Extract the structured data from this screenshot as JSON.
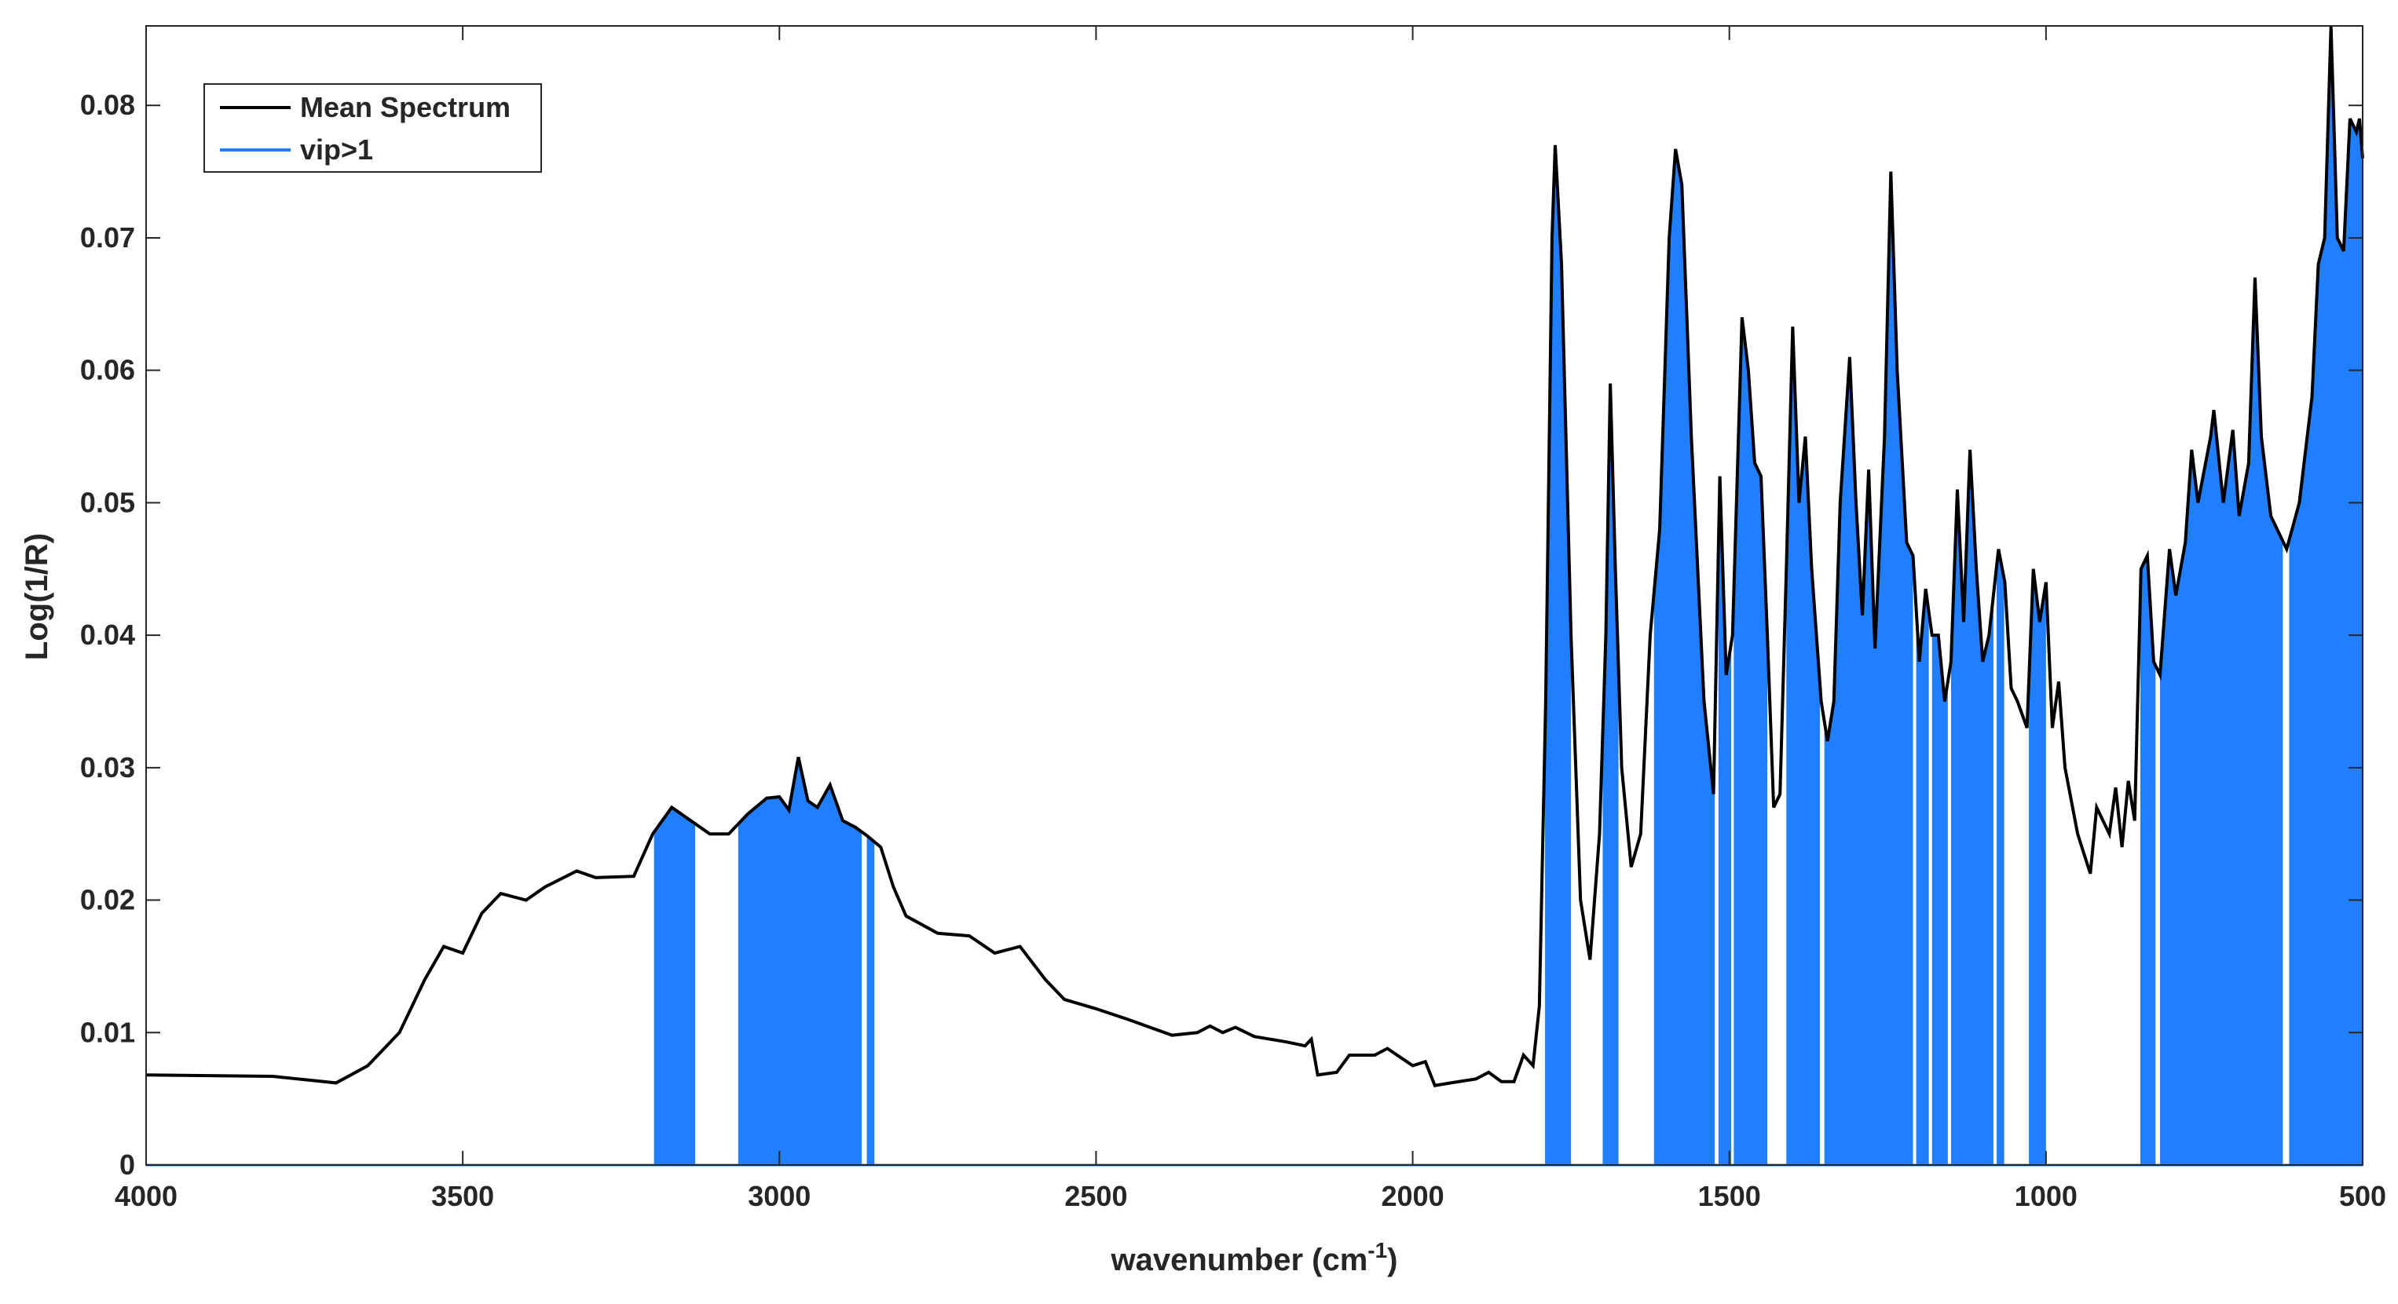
{
  "chart_data": {
    "type": "line",
    "ylabel": "Log(1/R)",
    "xlabel": [
      "wavenumber (cm",
      "-1",
      ")"
    ],
    "xlim": [
      4000,
      500
    ],
    "ylim": [
      0,
      0.086
    ],
    "xticks": [
      4000,
      3500,
      3000,
      2500,
      2000,
      1500,
      1000,
      500
    ],
    "yticks": [
      0,
      0.01,
      0.02,
      0.03,
      0.04,
      0.05,
      0.06,
      0.07,
      0.08
    ],
    "legend": "top-left",
    "series": [
      {
        "name": "Mean Spectrum",
        "color": "#000000",
        "x": [
          4000,
          3800,
          3700,
          3650,
          3600,
          3560,
          3530,
          3500,
          3470,
          3440,
          3400,
          3370,
          3320,
          3290,
          3230,
          3200,
          3170,
          3140,
          3110,
          3080,
          3050,
          3020,
          3000,
          2985,
          2970,
          2955,
          2940,
          2920,
          2900,
          2880,
          2860,
          2840,
          2820,
          2800,
          2750,
          2700,
          2660,
          2620,
          2580,
          2550,
          2500,
          2450,
          2380,
          2340,
          2320,
          2300,
          2280,
          2250,
          2200,
          2170,
          2160,
          2150,
          2120,
          2100,
          2060,
          2040,
          2000,
          1980,
          1965,
          1940,
          1900,
          1880,
          1860,
          1840,
          1825,
          1810,
          1800,
          1790,
          1780,
          1775,
          1765,
          1750,
          1735,
          1720,
          1705,
          1695,
          1688,
          1680,
          1670,
          1655,
          1640,
          1625,
          1610,
          1595,
          1585,
          1575,
          1560,
          1540,
          1525,
          1515,
          1505,
          1495,
          1480,
          1470,
          1460,
          1450,
          1440,
          1430,
          1420,
          1410,
          1400,
          1390,
          1380,
          1370,
          1355,
          1345,
          1335,
          1325,
          1310,
          1300,
          1290,
          1280,
          1270,
          1255,
          1245,
          1235,
          1220,
          1210,
          1200,
          1190,
          1180,
          1170,
          1160,
          1150,
          1140,
          1130,
          1120,
          1110,
          1100,
          1090,
          1075,
          1065,
          1055,
          1045,
          1030,
          1020,
          1010,
          1000,
          990,
          980,
          970,
          950,
          930,
          920,
          900,
          890,
          880,
          870,
          860,
          850,
          840,
          830,
          820,
          805,
          795,
          780,
          770,
          760,
          740,
          735,
          720,
          705,
          695,
          680,
          670,
          660,
          645,
          620,
          600,
          590,
          580,
          570,
          560,
          550,
          540,
          530,
          520,
          510,
          505,
          500
        ],
        "values": [
          0.0068,
          0.0067,
          0.0062,
          0.0075,
          0.01,
          0.014,
          0.0165,
          0.016,
          0.019,
          0.0205,
          0.02,
          0.021,
          0.0222,
          0.0217,
          0.0218,
          0.025,
          0.027,
          0.026,
          0.025,
          0.025,
          0.0265,
          0.0277,
          0.0278,
          0.0268,
          0.0308,
          0.0275,
          0.027,
          0.0287,
          0.026,
          0.0255,
          0.0248,
          0.024,
          0.021,
          0.0188,
          0.0175,
          0.0173,
          0.016,
          0.0165,
          0.014,
          0.0125,
          0.0118,
          0.011,
          0.0098,
          0.01,
          0.0105,
          0.01,
          0.0104,
          0.0097,
          0.0093,
          0.009,
          0.0095,
          0.0068,
          0.007,
          0.0083,
          0.0083,
          0.0088,
          0.0075,
          0.0078,
          0.006,
          0.0062,
          0.0065,
          0.007,
          0.0063,
          0.0063,
          0.0083,
          0.0075,
          0.012,
          0.035,
          0.07,
          0.077,
          0.068,
          0.04,
          0.02,
          0.0155,
          0.025,
          0.04,
          0.059,
          0.045,
          0.03,
          0.0225,
          0.025,
          0.04,
          0.048,
          0.07,
          0.0767,
          0.074,
          0.055,
          0.035,
          0.028,
          0.052,
          0.037,
          0.04,
          0.064,
          0.06,
          0.053,
          0.052,
          0.04,
          0.027,
          0.028,
          0.045,
          0.0633,
          0.05,
          0.055,
          0.045,
          0.035,
          0.032,
          0.035,
          0.05,
          0.061,
          0.05,
          0.0415,
          0.0525,
          0.039,
          0.055,
          0.075,
          0.06,
          0.047,
          0.046,
          0.038,
          0.0435,
          0.04,
          0.04,
          0.035,
          0.038,
          0.051,
          0.041,
          0.054,
          0.045,
          0.038,
          0.04,
          0.0465,
          0.044,
          0.036,
          0.035,
          0.033,
          0.045,
          0.041,
          0.044,
          0.033,
          0.0365,
          0.03,
          0.025,
          0.022,
          0.027,
          0.025,
          0.0285,
          0.024,
          0.029,
          0.026,
          0.045,
          0.046,
          0.038,
          0.037,
          0.0465,
          0.043,
          0.047,
          0.054,
          0.05,
          0.055,
          0.057,
          0.05,
          0.0555,
          0.049,
          0.053,
          0.067,
          0.055,
          0.049,
          0.0465,
          0.05,
          0.054,
          0.058,
          0.068,
          0.07,
          0.086,
          0.07,
          0.069,
          0.079,
          0.078,
          0.079,
          0.076
        ]
      },
      {
        "name": "vip>1",
        "color": "#1f7fff",
        "ranges": [
          [
            3198,
            3133
          ],
          [
            3065,
            2870
          ],
          [
            2862,
            2850
          ],
          [
            1791,
            1750
          ],
          [
            1700,
            1675
          ],
          [
            1619,
            1523
          ],
          [
            1517,
            1497
          ],
          [
            1493,
            1440
          ],
          [
            1410,
            1357
          ],
          [
            1350,
            1210
          ],
          [
            1205,
            1185
          ],
          [
            1180,
            1155
          ],
          [
            1150,
            1083
          ],
          [
            1078,
            1066
          ],
          [
            1027,
            1000
          ],
          [
            851,
            827
          ],
          [
            820,
            626
          ],
          [
            616,
            500
          ]
        ]
      }
    ]
  }
}
